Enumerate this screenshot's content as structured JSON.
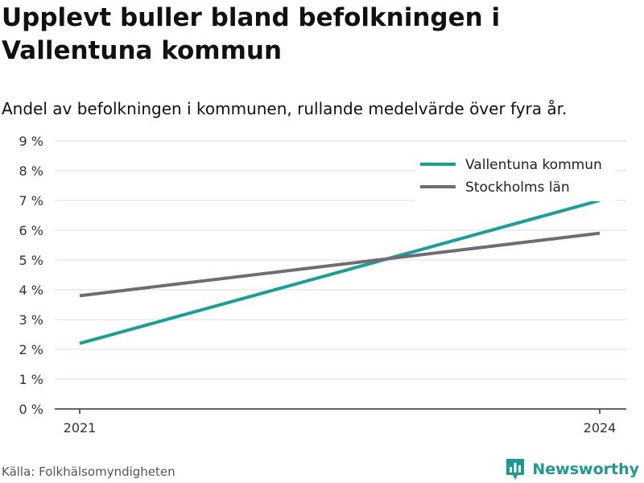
{
  "title": "Upplevt buller bland befolkningen i Vallentuna kommun",
  "subtitle": "Andel av befolkningen i kommunen, rullande medelvärde över fyra år.",
  "source": "Källa: Folkhälsomyndigheten",
  "brand": {
    "name": "Newsworthy",
    "icon": "bar-chart-logo-icon",
    "color": "#1a9b8e"
  },
  "chart_data": {
    "type": "line",
    "x": [
      2021,
      2024
    ],
    "x_tick_labels": [
      "2021",
      "2024"
    ],
    "y_ticks": [
      0,
      1,
      2,
      3,
      4,
      5,
      6,
      7,
      8,
      9
    ],
    "y_tick_labels": [
      "0 %",
      "1 %",
      "2 %",
      "3 %",
      "4 %",
      "5 %",
      "6 %",
      "7 %",
      "8 %",
      "9 %"
    ],
    "ylim": [
      0,
      9
    ],
    "grid": true,
    "legend_position": "top-right",
    "series": [
      {
        "name": "Vallentuna kommun",
        "color": "#16a096",
        "values": [
          2.2,
          7.0
        ]
      },
      {
        "name": "Stockholms län",
        "color": "#6e6d75",
        "values": [
          3.8,
          5.9
        ]
      }
    ]
  }
}
